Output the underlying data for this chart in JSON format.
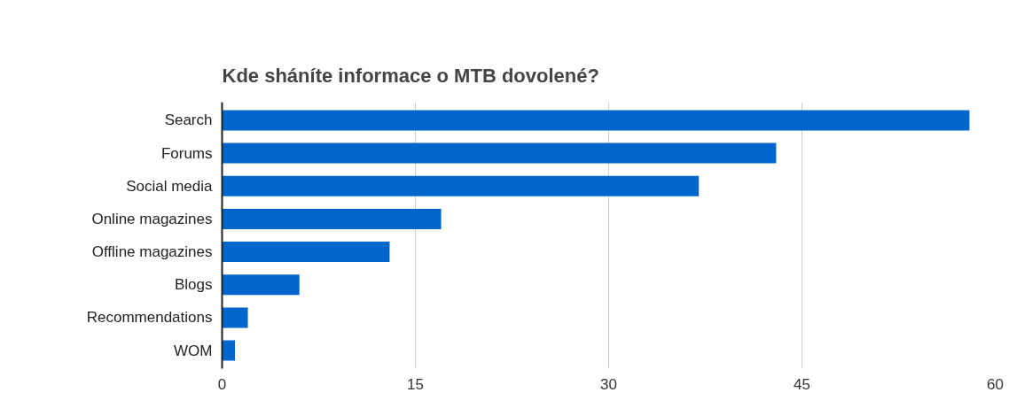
{
  "chart_data": {
    "type": "bar",
    "orientation": "horizontal",
    "title": "Kde sháníte informace o MTB dovolené?",
    "categories": [
      "Search",
      "Forums",
      "Social media",
      "Online magazines",
      "Offline magazines",
      "Blogs",
      "Recommendations",
      "WOM"
    ],
    "values": [
      58,
      43,
      37,
      17,
      13,
      6,
      2,
      1
    ],
    "color": "#0066cc",
    "xlim": [
      0,
      60
    ],
    "xticks": [
      0,
      15,
      30,
      45,
      60
    ],
    "grid": "x"
  }
}
